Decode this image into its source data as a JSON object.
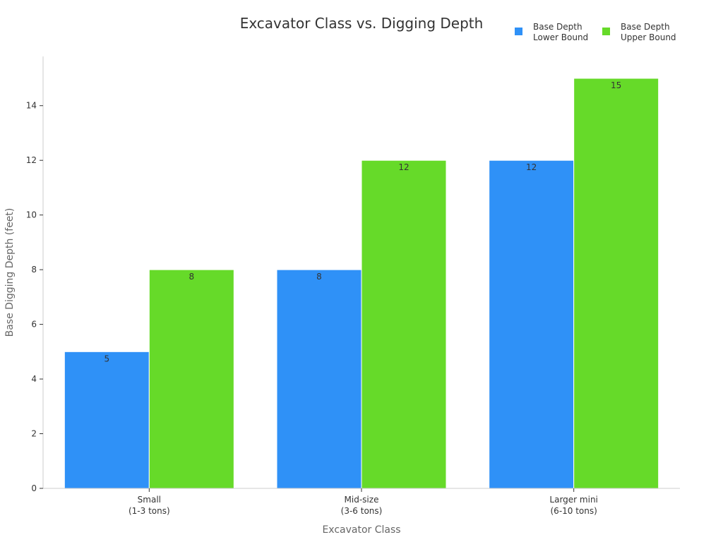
{
  "chart_data": {
    "type": "bar",
    "title": "Excavator Class vs. Digging Depth",
    "xlabel": "Excavator Class",
    "ylabel": "Base Digging Depth (feet)",
    "categories": [
      [
        "Small",
        "(1-3 tons)"
      ],
      [
        "Mid-size",
        "(3-6 tons)"
      ],
      [
        "Larger mini",
        "(6-10 tons)"
      ]
    ],
    "series": [
      {
        "name": [
          "Base Depth",
          "Lower Bound"
        ],
        "values": [
          5,
          8,
          12
        ],
        "color": "#2f91f7"
      },
      {
        "name": [
          "Base Depth",
          "Upper Bound"
        ],
        "values": [
          8,
          12,
          15
        ],
        "color": "#66da29"
      }
    ],
    "ylim": [
      0,
      15.8
    ],
    "yticks": [
      0,
      2,
      4,
      6,
      8,
      10,
      12,
      14
    ],
    "grid": false,
    "legend_position": "top-right"
  }
}
